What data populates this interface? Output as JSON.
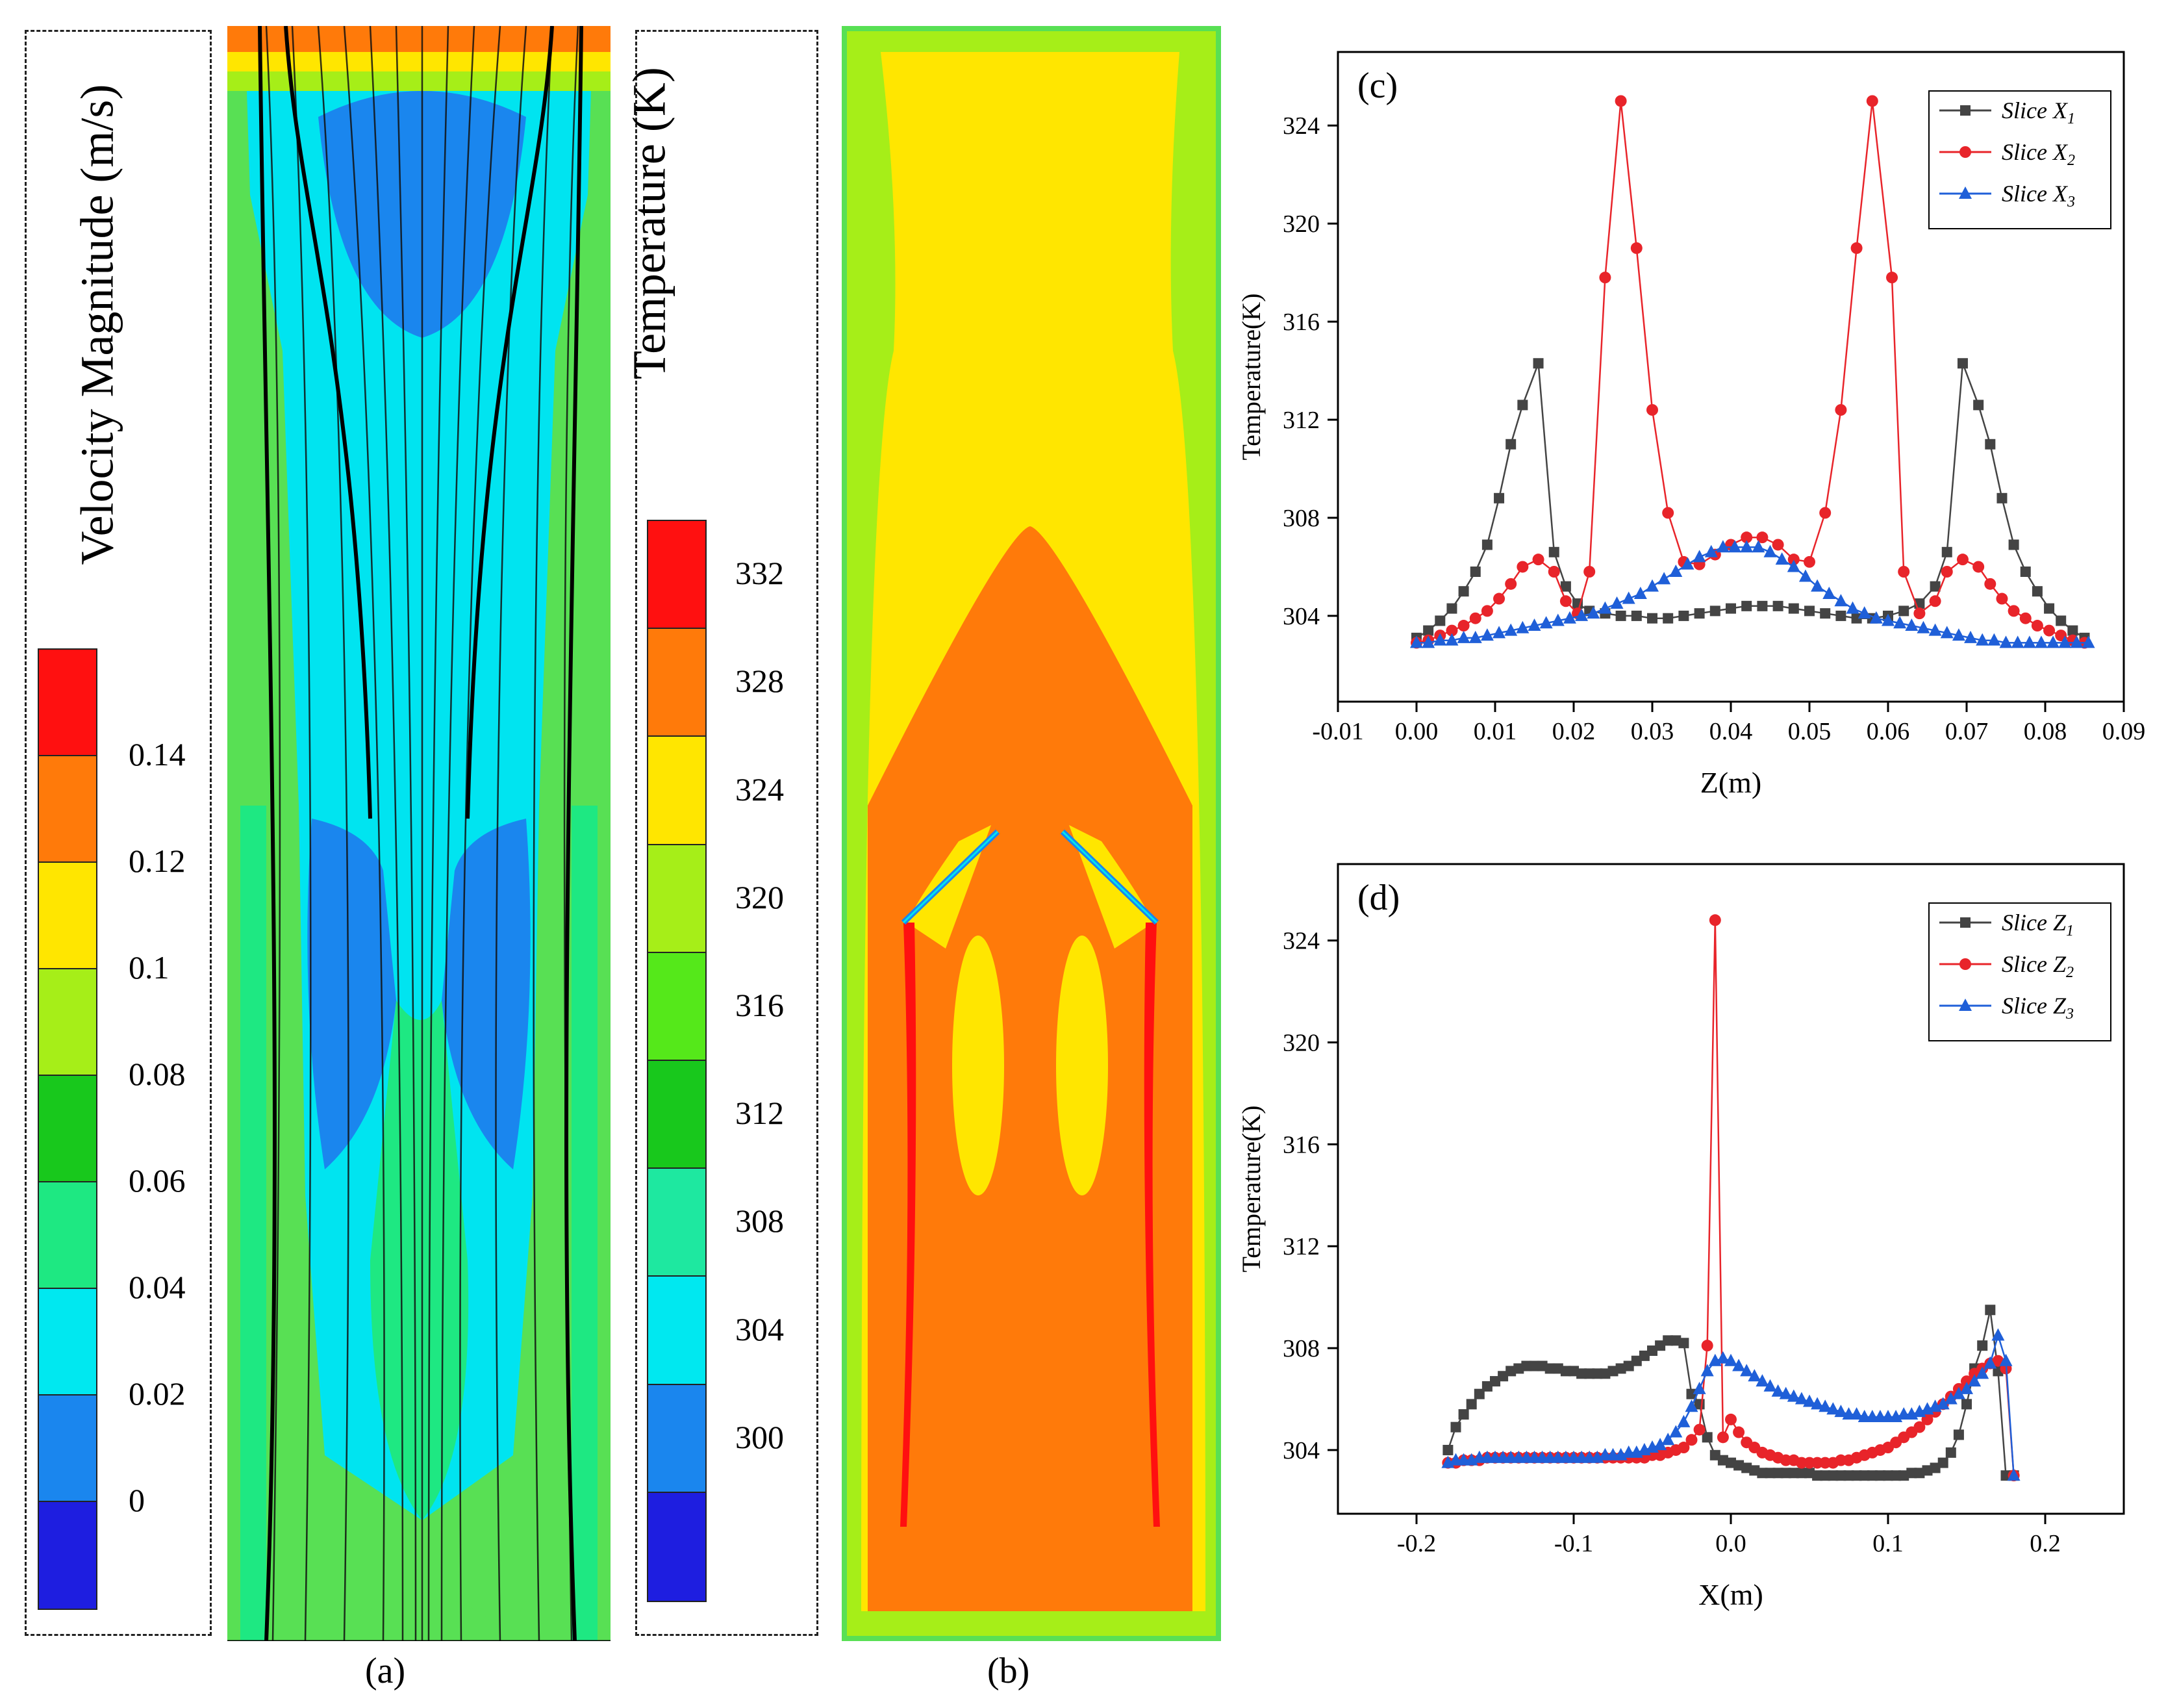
{
  "panels": {
    "a": {
      "label": "(a)",
      "colorbar_title": "Velocity Magnitude (m/s)",
      "ticks": [
        "0.14",
        "0.12",
        "0.1",
        "0.08",
        "0.06",
        "0.04",
        "0.02",
        "0"
      ],
      "colors": [
        "#ff1010",
        "#ff7a0a",
        "#ffe600",
        "#a6ee18",
        "#18c81c",
        "#1ee882",
        "#00e8f0",
        "#1a86ee",
        "#1e1ee0"
      ]
    },
    "b": {
      "label": "(b)",
      "colorbar_title": "Temperature (K)",
      "ticks": [
        "332",
        "328",
        "324",
        "320",
        "316",
        "312",
        "308",
        "304",
        "300"
      ],
      "colors": [
        "#ff1010",
        "#ff7a0a",
        "#ffe600",
        "#a6ee18",
        "#55e81a",
        "#18c81c",
        "#1ee8a0",
        "#00e8f0",
        "#1a86ee",
        "#1e1ee0"
      ]
    }
  },
  "chart_data": [
    {
      "type": "line",
      "panel_label": "(c)",
      "xlabel": "Z(m)",
      "ylabel": "Temperature(K)",
      "xlim": [
        -0.01,
        0.09
      ],
      "ylim": [
        300.5,
        327
      ],
      "xticks": [
        "-0.01",
        "0.00",
        "0.01",
        "0.02",
        "0.03",
        "0.04",
        "0.05",
        "0.06",
        "0.07",
        "0.08",
        "0.09"
      ],
      "yticks": [
        "304",
        "308",
        "312",
        "316",
        "320",
        "324"
      ],
      "legend_position": "top-right",
      "series": [
        {
          "name": "Slice X",
          "sub": "1",
          "color": "#444444",
          "marker": "square",
          "x": [
            0,
            0.0015,
            0.003,
            0.0045,
            0.006,
            0.0075,
            0.009,
            0.0105,
            0.012,
            0.0135,
            0.0155,
            0.0175,
            0.019,
            0.0205,
            0.022,
            0.024,
            0.026,
            0.028,
            0.03,
            0.032,
            0.034,
            0.036,
            0.038,
            0.04,
            0.042,
            0.044,
            0.046,
            0.048,
            0.05,
            0.052,
            0.054,
            0.056,
            0.058,
            0.06,
            0.062,
            0.064,
            0.066,
            0.0675,
            0.0695,
            0.0715,
            0.073,
            0.0745,
            0.076,
            0.0775,
            0.079,
            0.0805,
            0.082,
            0.0835,
            0.085
          ],
          "y": [
            303.1,
            303.4,
            303.8,
            304.3,
            305,
            305.8,
            306.9,
            308.8,
            311,
            312.6,
            314.3,
            306.6,
            305.2,
            304.5,
            304.2,
            304.1,
            304,
            304,
            303.9,
            303.9,
            304,
            304.1,
            304.2,
            304.3,
            304.4,
            304.4,
            304.4,
            304.3,
            304.2,
            304.1,
            304,
            303.9,
            303.9,
            304,
            304.2,
            304.5,
            305.2,
            306.6,
            314.3,
            312.6,
            311,
            308.8,
            306.9,
            305.8,
            305,
            304.3,
            303.8,
            303.4,
            303.1
          ]
        },
        {
          "name": "Slice X",
          "sub": "2",
          "color": "#e8242a",
          "marker": "circle",
          "x": [
            0,
            0.0015,
            0.003,
            0.0045,
            0.006,
            0.0075,
            0.009,
            0.0105,
            0.012,
            0.0135,
            0.0155,
            0.0175,
            0.019,
            0.0205,
            0.022,
            0.024,
            0.026,
            0.028,
            0.03,
            0.032,
            0.034,
            0.036,
            0.038,
            0.04,
            0.042,
            0.044,
            0.046,
            0.048,
            0.05,
            0.052,
            0.054,
            0.056,
            0.058,
            0.0605,
            0.062,
            0.064,
            0.066,
            0.0675,
            0.0695,
            0.0715,
            0.073,
            0.0745,
            0.076,
            0.0775,
            0.079,
            0.0805,
            0.082,
            0.0835,
            0.085
          ],
          "y": [
            302.9,
            303,
            303.2,
            303.4,
            303.6,
            303.9,
            304.2,
            304.7,
            305.3,
            306,
            306.3,
            305.8,
            304.6,
            304.1,
            305.8,
            317.8,
            325,
            319,
            312.4,
            308.2,
            306.2,
            306.1,
            306.5,
            306.9,
            307.2,
            307.2,
            306.9,
            306.3,
            306.2,
            308.2,
            312.4,
            319,
            325,
            317.8,
            305.8,
            304.1,
            304.6,
            305.8,
            306.3,
            306,
            305.3,
            304.7,
            304.2,
            303.9,
            303.6,
            303.4,
            303.2,
            303,
            302.9
          ]
        },
        {
          "name": "Slice X",
          "sub": "3",
          "color": "#1f5fd8",
          "marker": "triangle",
          "x": [
            0,
            0.0015,
            0.003,
            0.0045,
            0.006,
            0.0075,
            0.009,
            0.0105,
            0.012,
            0.0135,
            0.015,
            0.0165,
            0.018,
            0.0195,
            0.021,
            0.0225,
            0.024,
            0.0255,
            0.027,
            0.0285,
            0.03,
            0.0315,
            0.033,
            0.0345,
            0.036,
            0.0375,
            0.039,
            0.0405,
            0.042,
            0.0435,
            0.045,
            0.0465,
            0.048,
            0.0495,
            0.051,
            0.0525,
            0.054,
            0.0555,
            0.057,
            0.0585,
            0.06,
            0.0615,
            0.063,
            0.0645,
            0.066,
            0.0675,
            0.069,
            0.0705,
            0.072,
            0.0735,
            0.075,
            0.0765,
            0.078,
            0.0795,
            0.081,
            0.0825,
            0.084,
            0.0855
          ],
          "y": [
            302.9,
            302.9,
            303,
            303,
            303.1,
            303.1,
            303.2,
            303.3,
            303.4,
            303.5,
            303.6,
            303.7,
            303.8,
            303.9,
            304,
            304.1,
            304.3,
            304.5,
            304.7,
            304.9,
            305.2,
            305.5,
            305.8,
            306.1,
            306.4,
            306.6,
            306.8,
            306.8,
            306.8,
            306.8,
            306.6,
            306.3,
            306,
            305.6,
            305.2,
            304.9,
            304.6,
            304.3,
            304.1,
            303.9,
            303.8,
            303.7,
            303.6,
            303.5,
            303.4,
            303.3,
            303.2,
            303.1,
            303,
            303,
            302.9,
            302.9,
            302.9,
            302.9,
            302.9,
            302.9,
            302.9,
            302.9
          ]
        }
      ]
    },
    {
      "type": "line",
      "panel_label": "(d)",
      "xlabel": "X(m)",
      "ylabel": "Temperature(K)",
      "xlim": [
        -0.25,
        0.25
      ],
      "ylim": [
        301.5,
        327
      ],
      "xticks": [
        "-0.2",
        "-0.1",
        "0.0",
        "0.1",
        "0.2"
      ],
      "yticks": [
        "304",
        "308",
        "312",
        "316",
        "320",
        "324"
      ],
      "legend_position": "top-right",
      "series": [
        {
          "name": "Slice Z",
          "sub": "1",
          "color": "#444444",
          "marker": "square",
          "x": [
            -0.18,
            -0.175,
            -0.17,
            -0.165,
            -0.16,
            -0.155,
            -0.15,
            -0.145,
            -0.14,
            -0.135,
            -0.13,
            -0.125,
            -0.12,
            -0.115,
            -0.11,
            -0.105,
            -0.1,
            -0.095,
            -0.09,
            -0.085,
            -0.08,
            -0.075,
            -0.07,
            -0.065,
            -0.06,
            -0.055,
            -0.05,
            -0.045,
            -0.04,
            -0.035,
            -0.03,
            -0.025,
            -0.02,
            -0.015,
            -0.01,
            -0.005,
            0,
            0.005,
            0.01,
            0.015,
            0.02,
            0.025,
            0.03,
            0.035,
            0.04,
            0.045,
            0.05,
            0.055,
            0.06,
            0.065,
            0.07,
            0.075,
            0.08,
            0.085,
            0.09,
            0.095,
            0.1,
            0.105,
            0.11,
            0.115,
            0.12,
            0.125,
            0.13,
            0.135,
            0.14,
            0.145,
            0.15,
            0.155,
            0.16,
            0.165,
            0.17,
            0.175,
            0.18
          ],
          "y": [
            304,
            304.9,
            305.4,
            305.8,
            306.2,
            306.5,
            306.7,
            306.9,
            307.1,
            307.2,
            307.3,
            307.3,
            307.3,
            307.2,
            307.2,
            307.1,
            307.1,
            307,
            307,
            307,
            307,
            307.1,
            307.2,
            307.3,
            307.5,
            307.7,
            307.9,
            308.1,
            308.3,
            308.3,
            308.2,
            306.2,
            305.8,
            304.5,
            303.8,
            303.6,
            303.5,
            303.4,
            303.3,
            303.2,
            303.1,
            303.1,
            303.1,
            303.1,
            303.1,
            303.1,
            303.1,
            303,
            303,
            303,
            303,
            303,
            303,
            303,
            303,
            303,
            303,
            303,
            303,
            303.1,
            303.1,
            303.2,
            303.3,
            303.5,
            303.9,
            304.6,
            305.8,
            307.2,
            308.1,
            309.5,
            307.1,
            303,
            303
          ]
        },
        {
          "name": "Slice Z",
          "sub": "2",
          "color": "#e8242a",
          "marker": "circle",
          "x": [
            -0.18,
            -0.175,
            -0.17,
            -0.165,
            -0.16,
            -0.155,
            -0.15,
            -0.145,
            -0.14,
            -0.135,
            -0.13,
            -0.125,
            -0.12,
            -0.115,
            -0.11,
            -0.105,
            -0.1,
            -0.095,
            -0.09,
            -0.085,
            -0.08,
            -0.075,
            -0.07,
            -0.065,
            -0.06,
            -0.055,
            -0.05,
            -0.045,
            -0.04,
            -0.035,
            -0.03,
            -0.025,
            -0.02,
            -0.015,
            -0.01,
            -0.005,
            0,
            0.005,
            0.01,
            0.015,
            0.02,
            0.025,
            0.03,
            0.035,
            0.04,
            0.045,
            0.05,
            0.055,
            0.06,
            0.065,
            0.07,
            0.075,
            0.08,
            0.085,
            0.09,
            0.095,
            0.1,
            0.105,
            0.11,
            0.115,
            0.12,
            0.125,
            0.13,
            0.135,
            0.14,
            0.145,
            0.15,
            0.155,
            0.16,
            0.165,
            0.17,
            0.175,
            0.18
          ],
          "y": [
            303.5,
            303.5,
            303.6,
            303.6,
            303.6,
            303.7,
            303.7,
            303.7,
            303.7,
            303.7,
            303.7,
            303.7,
            303.7,
            303.7,
            303.7,
            303.7,
            303.7,
            303.7,
            303.7,
            303.7,
            303.7,
            303.7,
            303.7,
            303.7,
            303.7,
            303.7,
            303.8,
            303.8,
            303.9,
            304,
            304.1,
            304.4,
            304.8,
            308.1,
            324.8,
            304.5,
            305.2,
            304.7,
            304.3,
            304.1,
            303.9,
            303.8,
            303.7,
            303.6,
            303.6,
            303.5,
            303.5,
            303.5,
            303.5,
            303.5,
            303.6,
            303.6,
            303.7,
            303.8,
            303.9,
            304,
            304.1,
            304.3,
            304.5,
            304.7,
            304.9,
            305.2,
            305.5,
            305.8,
            306.1,
            306.4,
            306.7,
            307,
            307.2,
            307.4,
            307.5,
            307.2,
            303
          ]
        },
        {
          "name": "Slice Z",
          "sub": "3",
          "color": "#1f5fd8",
          "marker": "triangle",
          "x": [
            -0.18,
            -0.175,
            -0.17,
            -0.165,
            -0.16,
            -0.155,
            -0.15,
            -0.145,
            -0.14,
            -0.135,
            -0.13,
            -0.125,
            -0.12,
            -0.115,
            -0.11,
            -0.105,
            -0.1,
            -0.095,
            -0.09,
            -0.085,
            -0.08,
            -0.075,
            -0.07,
            -0.065,
            -0.06,
            -0.055,
            -0.05,
            -0.045,
            -0.04,
            -0.035,
            -0.03,
            -0.025,
            -0.02,
            -0.015,
            -0.01,
            -0.005,
            0,
            0.005,
            0.01,
            0.015,
            0.02,
            0.025,
            0.03,
            0.035,
            0.04,
            0.045,
            0.05,
            0.055,
            0.06,
            0.065,
            0.07,
            0.075,
            0.08,
            0.085,
            0.09,
            0.095,
            0.1,
            0.105,
            0.11,
            0.115,
            0.12,
            0.125,
            0.13,
            0.135,
            0.14,
            0.145,
            0.15,
            0.155,
            0.16,
            0.165,
            0.17,
            0.175,
            0.18
          ],
          "y": [
            303.5,
            303.6,
            303.6,
            303.6,
            303.7,
            303.7,
            303.7,
            303.7,
            303.7,
            303.7,
            303.7,
            303.7,
            303.7,
            303.7,
            303.7,
            303.7,
            303.7,
            303.7,
            303.7,
            303.7,
            303.8,
            303.8,
            303.8,
            303.9,
            303.9,
            304,
            304.1,
            304.2,
            304.4,
            304.7,
            305.1,
            305.7,
            306.4,
            307.1,
            307.5,
            307.6,
            307.5,
            307.3,
            307.1,
            306.9,
            306.7,
            306.5,
            306.3,
            306.2,
            306.1,
            306,
            305.9,
            305.8,
            305.7,
            305.6,
            305.5,
            305.4,
            305.4,
            305.3,
            305.3,
            305.3,
            305.3,
            305.3,
            305.4,
            305.4,
            305.5,
            305.6,
            305.7,
            305.8,
            306,
            306.2,
            306.4,
            306.7,
            307,
            307.4,
            308.5,
            307.5,
            303
          ]
        }
      ]
    }
  ]
}
